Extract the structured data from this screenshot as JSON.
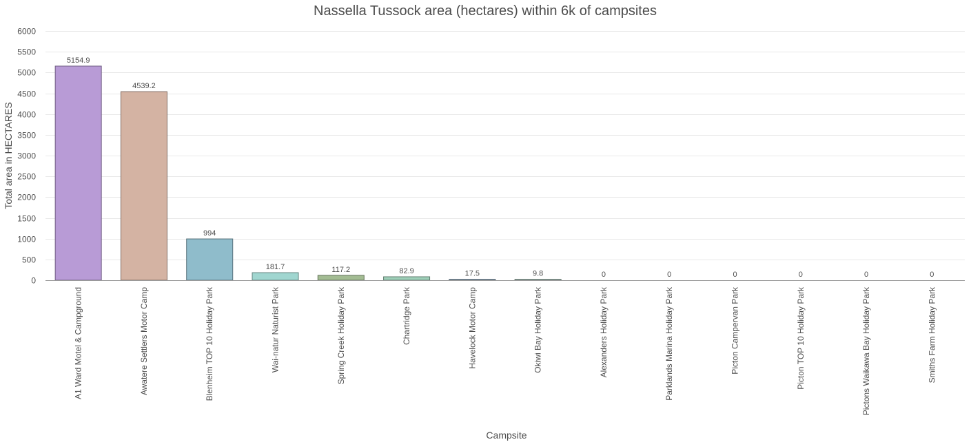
{
  "chart_data": {
    "type": "bar",
    "title": "Nassella Tussock area (hectares) within 6k of campsites",
    "xlabel": "Campsite",
    "ylabel": "Total area in HECTARES",
    "ylim": [
      0,
      6000
    ],
    "yticks": [
      0,
      500,
      1000,
      1500,
      2000,
      2500,
      3000,
      3500,
      4000,
      4500,
      5000,
      5500,
      6000
    ],
    "grid": true,
    "categories": [
      "A1 Ward Motel & Campground",
      "Awatere Settlers Motor Camp",
      "Blenheim TOP 10 Holiday Park",
      "Wai-natur Naturist Park",
      "Spring Creek Holiday Park",
      "Chartridge Park",
      "Havelock Motor Camp",
      "Okiwi Bay Holiday Park",
      "Alexanders Holiday Park",
      "Parklands Marina Holiday Park",
      "Picton Campervan Park",
      "Picton TOP 10 Holiday Park",
      "Pictons Waikawa Bay Holiday Park",
      "Smiths Farm Holiday Park"
    ],
    "values": [
      5154.9,
      4539.2,
      994,
      181.7,
      117.2,
      82.9,
      17.5,
      9.8,
      0,
      0,
      0,
      0,
      0,
      0
    ],
    "data_labels": [
      "5154.9",
      "4539.2",
      "994",
      "181.7",
      "117.2",
      "82.9",
      "17.5",
      "9.8",
      "0",
      "0",
      "0",
      "0",
      "0",
      "0"
    ],
    "colors": [
      "#b89bd6",
      "#d4b3a3",
      "#8fbccb",
      "#a0d6d0",
      "#a3bc93",
      "#9ecfb8",
      "#a0b8c8",
      "#b0c8c0",
      "#c8c8c8",
      "#c8c8c8",
      "#c8c8c8",
      "#c8c8c8",
      "#c8c8c8",
      "#c8c8c8"
    ]
  }
}
